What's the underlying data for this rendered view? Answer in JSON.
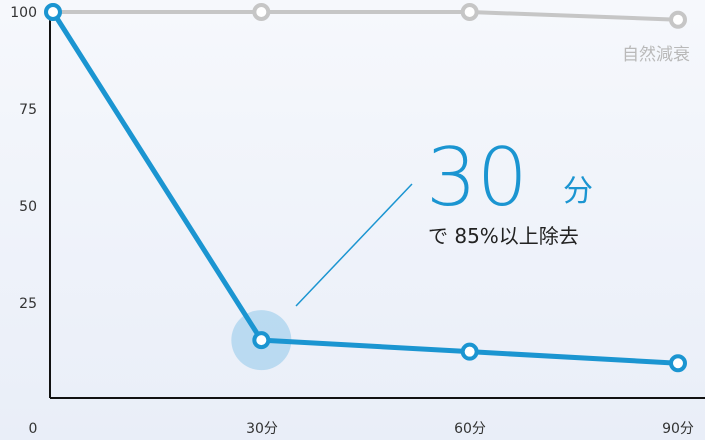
{
  "chart_data": {
    "type": "line",
    "x_categories": [
      "0",
      "30分",
      "60分",
      "90分"
    ],
    "x": [
      0,
      30,
      60,
      90
    ],
    "ylim": [
      0,
      100
    ],
    "y_ticks": [
      "25",
      "50",
      "75",
      "100"
    ],
    "series": [
      {
        "name": "自然減衰",
        "color": "#c6c6c6",
        "values": [
          100,
          100,
          100,
          98
        ]
      },
      {
        "name": "",
        "color": "#1b95d1",
        "values": [
          100,
          15,
          12,
          9
        ]
      }
    ],
    "annotation": {
      "big_number": "30",
      "big_unit": "分",
      "subtitle": "で 85%以上除去"
    }
  }
}
